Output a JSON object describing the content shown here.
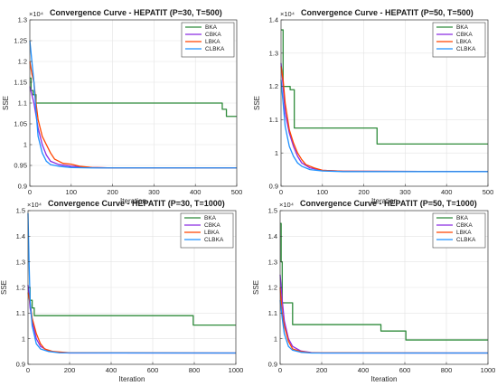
{
  "chart_data": [
    {
      "type": "line",
      "title": "Convergence Curve - HEPATIT (P=30, T=500)",
      "xlabel": "Iteration",
      "ylabel": "SSE",
      "exponent": "×10⁴",
      "xlim": [
        0,
        500
      ],
      "ylim": [
        0.9,
        1.3
      ],
      "xticks": [
        0,
        100,
        200,
        300,
        400,
        500
      ],
      "yticks": [
        0.9,
        0.95,
        1,
        1.05,
        1.1,
        1.15,
        1.2,
        1.25,
        1.3
      ],
      "grid": true,
      "legend_position": "top-right",
      "series": [
        {
          "name": "BKA",
          "color": "#2e8b3a",
          "step": true,
          "points": [
            [
              0,
              1.16
            ],
            [
              3,
              1.13
            ],
            [
              8,
              1.12
            ],
            [
              15,
              1.1
            ],
            [
              460,
              1.1
            ],
            [
              465,
              1.085
            ],
            [
              470,
              1.085
            ],
            [
              475,
              1.068
            ],
            [
              500,
              1.068
            ]
          ]
        },
        {
          "name": "CBKA",
          "color": "#8a2be2",
          "step": false,
          "points": [
            [
              0,
              1.14
            ],
            [
              5,
              1.12
            ],
            [
              10,
              1.1
            ],
            [
              15,
              1.07
            ],
            [
              20,
              1.04
            ],
            [
              30,
              1.0
            ],
            [
              40,
              0.975
            ],
            [
              50,
              0.96
            ],
            [
              70,
              0.952
            ],
            [
              100,
              0.948
            ],
            [
              150,
              0.945
            ],
            [
              200,
              0.944
            ],
            [
              500,
              0.944
            ]
          ]
        },
        {
          "name": "LBKA",
          "color": "#ff4500",
          "step": false,
          "points": [
            [
              0,
              1.2
            ],
            [
              5,
              1.17
            ],
            [
              10,
              1.15
            ],
            [
              15,
              1.1
            ],
            [
              20,
              1.06
            ],
            [
              30,
              1.02
            ],
            [
              40,
              1.0
            ],
            [
              50,
              0.98
            ],
            [
              60,
              0.965
            ],
            [
              80,
              0.955
            ],
            [
              100,
              0.953
            ],
            [
              120,
              0.948
            ],
            [
              150,
              0.945
            ],
            [
              200,
              0.944
            ],
            [
              500,
              0.944
            ]
          ]
        },
        {
          "name": "CLBKA",
          "color": "#1e90ff",
          "step": false,
          "points": [
            [
              0,
              1.25
            ],
            [
              5,
              1.2
            ],
            [
              10,
              1.15
            ],
            [
              15,
              1.08
            ],
            [
              20,
              1.02
            ],
            [
              30,
              0.98
            ],
            [
              40,
              0.96
            ],
            [
              50,
              0.952
            ],
            [
              70,
              0.948
            ],
            [
              100,
              0.945
            ],
            [
              150,
              0.944
            ],
            [
              500,
              0.944
            ]
          ]
        }
      ]
    },
    {
      "type": "line",
      "title": "Convergence Curve - HEPATIT (P=50, T=500)",
      "xlabel": "Iteration",
      "ylabel": "SSE",
      "exponent": "×10⁴",
      "xlim": [
        0,
        500
      ],
      "ylim": [
        0.9,
        1.4
      ],
      "xticks": [
        0,
        100,
        200,
        300,
        400,
        500
      ],
      "yticks": [
        0.9,
        1,
        1.1,
        1.2,
        1.3,
        1.4
      ],
      "grid": true,
      "legend_position": "top-right",
      "series": [
        {
          "name": "BKA",
          "color": "#2e8b3a",
          "step": true,
          "points": [
            [
              0,
              1.37
            ],
            [
              3,
              1.37
            ],
            [
              5,
              1.2
            ],
            [
              20,
              1.2
            ],
            [
              22,
              1.19
            ],
            [
              30,
              1.19
            ],
            [
              32,
              1.075
            ],
            [
              230,
              1.075
            ],
            [
              232,
              1.027
            ],
            [
              500,
              1.027
            ]
          ]
        },
        {
          "name": "CBKA",
          "color": "#8a2be2",
          "step": false,
          "points": [
            [
              0,
              1.27
            ],
            [
              5,
              1.2
            ],
            [
              10,
              1.12
            ],
            [
              20,
              1.06
            ],
            [
              30,
              1.02
            ],
            [
              40,
              0.99
            ],
            [
              50,
              0.97
            ],
            [
              70,
              0.955
            ],
            [
              100,
              0.948
            ],
            [
              150,
              0.945
            ],
            [
              500,
              0.944
            ]
          ]
        },
        {
          "name": "LBKA",
          "color": "#ff4500",
          "step": false,
          "points": [
            [
              0,
              1.26
            ],
            [
              5,
              1.22
            ],
            [
              10,
              1.15
            ],
            [
              20,
              1.07
            ],
            [
              30,
              1.03
            ],
            [
              40,
              1.0
            ],
            [
              50,
              0.98
            ],
            [
              60,
              0.965
            ],
            [
              80,
              0.955
            ],
            [
              100,
              0.948
            ],
            [
              150,
              0.945
            ],
            [
              500,
              0.944
            ]
          ]
        },
        {
          "name": "CLBKA",
          "color": "#1e90ff",
          "step": false,
          "points": [
            [
              0,
              1.22
            ],
            [
              5,
              1.15
            ],
            [
              10,
              1.08
            ],
            [
              20,
              1.02
            ],
            [
              30,
              0.99
            ],
            [
              40,
              0.97
            ],
            [
              50,
              0.96
            ],
            [
              70,
              0.95
            ],
            [
              100,
              0.946
            ],
            [
              150,
              0.944
            ],
            [
              500,
              0.944
            ]
          ]
        }
      ]
    },
    {
      "type": "line",
      "title": "Convergence Curve - HEPATIT (P=30, T=1000)",
      "xlabel": "Iteration",
      "ylabel": "SSE",
      "exponent": "×10⁴",
      "xlim": [
        0,
        1000
      ],
      "ylim": [
        0.9,
        1.5
      ],
      "xticks": [
        0,
        200,
        400,
        600,
        800,
        1000
      ],
      "yticks": [
        0.9,
        1,
        1.1,
        1.2,
        1.3,
        1.4,
        1.5
      ],
      "grid": true,
      "legend_position": "top-right",
      "series": [
        {
          "name": "BKA",
          "color": "#2e8b3a",
          "step": true,
          "points": [
            [
              0,
              1.2
            ],
            [
              10,
              1.15
            ],
            [
              20,
              1.12
            ],
            [
              30,
              1.09
            ],
            [
              790,
              1.09
            ],
            [
              795,
              1.053
            ],
            [
              1000,
              1.053
            ]
          ]
        },
        {
          "name": "CBKA",
          "color": "#8a2be2",
          "step": false,
          "points": [
            [
              0,
              1.21
            ],
            [
              10,
              1.12
            ],
            [
              20,
              1.07
            ],
            [
              40,
              1.0
            ],
            [
              60,
              0.97
            ],
            [
              100,
              0.952
            ],
            [
              150,
              0.946
            ],
            [
              200,
              0.944
            ],
            [
              1000,
              0.944
            ]
          ]
        },
        {
          "name": "LBKA",
          "color": "#ff4500",
          "step": false,
          "points": [
            [
              0,
              1.18
            ],
            [
              10,
              1.14
            ],
            [
              20,
              1.08
            ],
            [
              40,
              1.02
            ],
            [
              60,
              0.98
            ],
            [
              80,
              0.96
            ],
            [
              120,
              0.95
            ],
            [
              200,
              0.945
            ],
            [
              1000,
              0.944
            ]
          ]
        },
        {
          "name": "CLBKA",
          "color": "#1e90ff",
          "step": false,
          "points": [
            [
              0,
              1.49
            ],
            [
              5,
              1.3
            ],
            [
              10,
              1.15
            ],
            [
              20,
              1.05
            ],
            [
              40,
              0.98
            ],
            [
              60,
              0.96
            ],
            [
              100,
              0.95
            ],
            [
              150,
              0.945
            ],
            [
              1000,
              0.944
            ]
          ]
        }
      ]
    },
    {
      "type": "line",
      "title": "Convergence Curve - HEPATIT (P=50, T=1000)",
      "xlabel": "Iteration",
      "ylabel": "SSE",
      "exponent": "×10⁴",
      "xlim": [
        0,
        1000
      ],
      "ylim": [
        0.9,
        1.5
      ],
      "xticks": [
        0,
        200,
        400,
        600,
        800,
        1000
      ],
      "yticks": [
        0.9,
        1,
        1.1,
        1.2,
        1.3,
        1.4,
        1.5
      ],
      "grid": true,
      "legend_position": "top-right",
      "series": [
        {
          "name": "BKA",
          "color": "#2e8b3a",
          "step": true,
          "points": [
            [
              0,
              1.45
            ],
            [
              5,
              1.3
            ],
            [
              10,
              1.14
            ],
            [
              55,
              1.14
            ],
            [
              60,
              1.055
            ],
            [
              480,
              1.055
            ],
            [
              485,
              1.03
            ],
            [
              600,
              1.03
            ],
            [
              605,
              0.995
            ],
            [
              1000,
              0.995
            ]
          ]
        },
        {
          "name": "CBKA",
          "color": "#8a2be2",
          "step": false,
          "points": [
            [
              0,
              1.25
            ],
            [
              10,
              1.15
            ],
            [
              20,
              1.07
            ],
            [
              40,
              1.0
            ],
            [
              60,
              0.97
            ],
            [
              100,
              0.952
            ],
            [
              150,
              0.946
            ],
            [
              200,
              0.944
            ],
            [
              1000,
              0.944
            ]
          ]
        },
        {
          "name": "LBKA",
          "color": "#ff4500",
          "step": false,
          "points": [
            [
              0,
              1.2
            ],
            [
              10,
              1.1
            ],
            [
              20,
              1.05
            ],
            [
              40,
              0.99
            ],
            [
              60,
              0.96
            ],
            [
              100,
              0.95
            ],
            [
              150,
              0.945
            ],
            [
              1000,
              0.944
            ]
          ]
        },
        {
          "name": "CLBKA",
          "color": "#1e90ff",
          "step": false,
          "points": [
            [
              0,
              1.15
            ],
            [
              10,
              1.08
            ],
            [
              20,
              1.02
            ],
            [
              40,
              0.97
            ],
            [
              60,
              0.955
            ],
            [
              100,
              0.947
            ],
            [
              150,
              0.944
            ],
            [
              1000,
              0.944
            ]
          ]
        }
      ]
    }
  ]
}
